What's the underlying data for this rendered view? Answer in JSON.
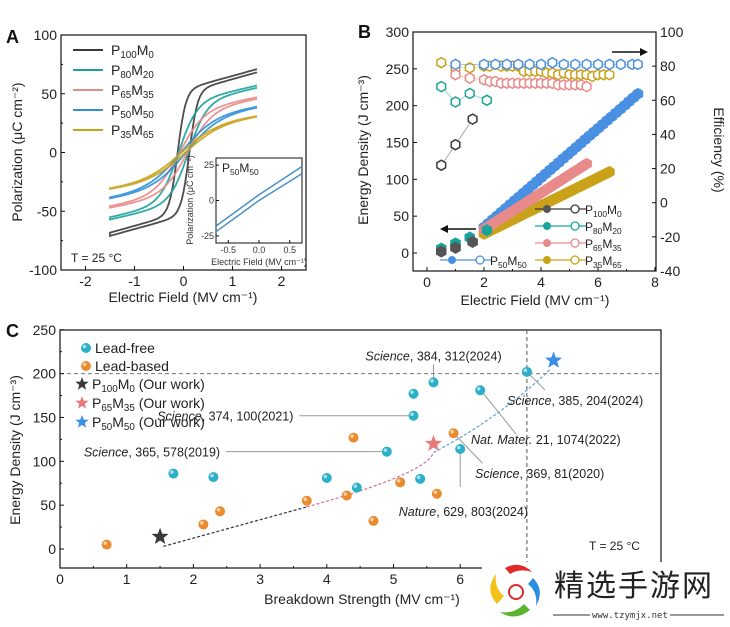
{
  "chart_data": [
    {
      "panel": "A",
      "type": "line",
      "title": "",
      "xlabel": "Electric Field (MV cm⁻¹)",
      "ylabel": "Polarization (μC cm⁻²)",
      "xlim": [
        -2.5,
        2.5
      ],
      "ylim": [
        -100,
        100
      ],
      "xticks": [
        -2,
        -1,
        0,
        1,
        2
      ],
      "xtick_labels": [
        "-2",
        "-1",
        "0",
        "1",
        "2"
      ],
      "yticks": [
        -100,
        -50,
        0,
        50,
        100
      ],
      "ytick_labels": [
        "-100",
        "-50",
        "0",
        "50",
        "100"
      ],
      "legend_position": "top-left",
      "annotation": "T = 25 °C",
      "series": [
        {
          "name": "P100M0",
          "label_main": "P",
          "sub1": "100",
          "label_mid": "M",
          "sub2": "0",
          "color": "#3a3a3a",
          "emax": 1.5,
          "pmax": 71,
          "pr": 44,
          "ec": 0.12,
          "sharp": 9
        },
        {
          "name": "P80M20",
          "label_main": "P",
          "sub1": "80",
          "label_mid": "M",
          "sub2": "20",
          "color": "#1aa39a",
          "emax": 1.5,
          "pmax": 57,
          "pr": 20,
          "ec": 0.1,
          "sharp": 4
        },
        {
          "name": "P65M35",
          "label_main": "P",
          "sub1": "65",
          "label_mid": "M",
          "sub2": "35",
          "color": "#e98a8a",
          "emax": 1.5,
          "pmax": 47,
          "pr": 12,
          "ec": 0.08,
          "sharp": 3
        },
        {
          "name": "P50M50",
          "label_main": "P",
          "sub1": "50",
          "label_mid": "M",
          "sub2": "50",
          "color": "#2f8fd8",
          "emax": 1.5,
          "pmax": 39,
          "pr": 4,
          "ec": 0.05,
          "sharp": 2.2
        },
        {
          "name": "P35M65",
          "label_main": "P",
          "sub1": "35",
          "label_mid": "M",
          "sub2": "65",
          "color": "#c9a21a",
          "emax": 1.5,
          "pmax": 31,
          "pr": 3,
          "ec": 0.04,
          "sharp": 2
        }
      ],
      "inset": {
        "title_main": "P",
        "title_sub1": "50",
        "title_mid": "M",
        "title_sub2": "50",
        "xlabel": "Electric Field (MV cm⁻¹)",
        "ylabel": "Polarization (μC cm⁻²)",
        "xlim": [
          -0.7,
          0.7
        ],
        "ylim": [
          -30,
          30
        ],
        "xtick_labels": [
          "-0.5",
          "0.0",
          "0.5"
        ],
        "xticks": [
          -0.5,
          0.0,
          0.5
        ],
        "ytick_labels": [
          "-25",
          "0",
          "25"
        ],
        "yticks": [
          -25,
          0,
          25
        ],
        "color": "#4a90c8",
        "upper_branch": [
          [
            -0.7,
            -18
          ],
          [
            0.0,
            4
          ],
          [
            0.7,
            24
          ]
        ],
        "lower_branch": [
          [
            -0.7,
            -22
          ],
          [
            0.0,
            0
          ],
          [
            0.7,
            19
          ]
        ]
      }
    },
    {
      "panel": "B",
      "type": "scatter",
      "xlabel": "Electric Field (MV cm⁻¹)",
      "ylabel_left": "Energy Density (J cm⁻³)",
      "ylabel_right": "Efficiency (%)",
      "xlim": [
        -0.5,
        8
      ],
      "ylim_left": [
        -25,
        300
      ],
      "ylim_right": [
        -40,
        100
      ],
      "xticks": [
        0,
        2,
        4,
        6,
        8
      ],
      "xtick_labels": [
        "0",
        "2",
        "4",
        "6",
        "8"
      ],
      "yticks_left": [
        0,
        50,
        100,
        150,
        200,
        250,
        300
      ],
      "ytick_labels_left": [
        "0",
        "50",
        "100",
        "150",
        "200",
        "250",
        "300"
      ],
      "yticks_right": [
        -40,
        -20,
        0,
        20,
        40,
        60,
        80,
        100
      ],
      "ytick_labels_right": [
        "-40",
        "-20",
        "0",
        "20",
        "40",
        "60",
        "80",
        "100"
      ],
      "legend_position": "bottom-right",
      "series": [
        {
          "name": "P100M0",
          "sub1": "100",
          "sub2": "0",
          "color": "#3a3a3a",
          "fill_color": "#555555",
          "energy": {
            "x": [
              0.5,
              1.0,
              1.6
            ],
            "y": [
              2,
              7,
              15
            ]
          },
          "efficiency": {
            "x": [
              0.5,
              1.0,
              1.6
            ],
            "y": [
              22,
              34,
              49
            ]
          }
        },
        {
          "name": "P80M20",
          "sub1": "80",
          "sub2": "20",
          "color": "#1aa39a",
          "fill_color": "#1aa39a",
          "energy": {
            "x": [
              0.5,
              1.0,
              1.5,
              2.1
            ],
            "y": [
              6,
              13,
              21,
              31
            ]
          },
          "efficiency": {
            "x": [
              0.5,
              1.0,
              1.5,
              2.1
            ],
            "y": [
              68,
              59,
              64,
              60
            ]
          }
        },
        {
          "name": "P65M35",
          "sub1": "65",
          "sub2": "35",
          "color": "#e98a8a",
          "fill_color": "#e98a8a",
          "energy": {
            "x_start": 2.0,
            "x_end": 5.6,
            "y_start": 32,
            "y_end": 121,
            "n": 25
          },
          "efficiency": {
            "x": [
              1.0,
              1.5,
              2.0,
              2.2,
              2.4,
              2.6,
              2.8,
              3.0,
              3.2,
              3.4,
              3.6,
              3.8,
              4.0,
              4.2,
              4.4,
              4.6,
              4.8,
              5.0,
              5.2,
              5.4,
              5.6
            ],
            "y": [
              75,
              73,
              72,
              71,
              71,
              70,
              70,
              70,
              70,
              70,
              70,
              70,
              70,
              70,
              70,
              69,
              69,
              69,
              69,
              69,
              68
            ]
          }
        },
        {
          "name": "P50M50",
          "sub1": "50",
          "sub2": "50",
          "color": "#4a90e2",
          "fill_color": "#4a90e2",
          "energy": {
            "x_start": 2.0,
            "x_end": 7.4,
            "y_start": 35,
            "y_end": 216,
            "n": 36
          },
          "efficiency": {
            "x": [
              1.0,
              2.0,
              2.4,
              2.8,
              3.2,
              3.6,
              4.0,
              4.4,
              4.8,
              5.2,
              5.6,
              6.0,
              6.4,
              6.8,
              7.2,
              7.4
            ],
            "y": [
              81,
              81,
              81,
              81,
              81,
              81,
              81,
              82,
              81,
              81,
              81,
              81,
              81,
              81,
              81,
              81
            ]
          }
        },
        {
          "name": "P35M65",
          "sub1": "35",
          "sub2": "65",
          "color": "#c9a21a",
          "fill_color": "#c9a21a",
          "energy": {
            "x_start": 2.0,
            "x_end": 6.4,
            "y_start": 26,
            "y_end": 110,
            "n": 40
          },
          "efficiency": {
            "x": [
              0.5,
              1.0,
              1.5,
              2.0,
              2.2,
              2.4,
              2.6,
              2.8,
              3.0,
              3.2,
              3.4,
              3.6,
              3.8,
              4.0,
              4.2,
              4.4,
              4.6,
              4.8,
              5.0,
              5.2,
              5.4,
              5.6,
              5.8,
              6.0,
              6.2,
              6.4
            ],
            "y": [
              82,
              79,
              79,
              80,
              80,
              81,
              80,
              80,
              80,
              80,
              77,
              77,
              77,
              77,
              76,
              76,
              75,
              76,
              75,
              75,
              75,
              75,
              74,
              75,
              75,
              75
            ]
          }
        }
      ],
      "legend_entries": [
        "P100M0",
        "P80M20",
        "P65M35",
        "P35M65",
        "P50M50"
      ]
    },
    {
      "panel": "C",
      "type": "scatter",
      "xlabel": "Breakdown Strength (MV cm⁻¹)",
      "ylabel": "Energy Density (J cm⁻³)",
      "xlim": [
        0,
        9
      ],
      "ylim": [
        -25,
        250
      ],
      "xticks": [
        0,
        1,
        2,
        3,
        4,
        5,
        6
      ],
      "xtick_labels": [
        "0",
        "1",
        "2",
        "3",
        "4",
        "5",
        "6"
      ],
      "yticks": [
        0,
        50,
        100,
        150,
        200,
        250
      ],
      "ytick_labels": [
        "0",
        "50",
        "100",
        "150",
        "200",
        "250"
      ],
      "reference_lines": {
        "horizontal_y": 200,
        "vertical_x": 7.0
      },
      "annotation": "T = 25 °C",
      "legend_position": "top-left",
      "lead_free": {
        "label": "Lead-free",
        "color": "#2bb0c8",
        "points": [
          [
            1.7,
            86
          ],
          [
            2.3,
            82
          ],
          [
            4.0,
            81
          ],
          [
            4.45,
            70
          ],
          [
            4.9,
            111
          ],
          [
            5.3,
            152
          ],
          [
            5.3,
            177
          ],
          [
            5.4,
            80
          ],
          [
            5.6,
            190
          ],
          [
            6.0,
            114
          ],
          [
            6.3,
            181
          ],
          [
            7.0,
            202
          ]
        ]
      },
      "lead_based": {
        "label": "Lead-based",
        "color": "#ea8c2e",
        "points": [
          [
            0.7,
            5
          ],
          [
            2.15,
            28
          ],
          [
            2.4,
            43
          ],
          [
            3.7,
            55
          ],
          [
            4.3,
            61
          ],
          [
            4.4,
            127
          ],
          [
            4.7,
            32
          ],
          [
            5.1,
            76
          ],
          [
            5.65,
            63
          ],
          [
            5.9,
            132
          ]
        ]
      },
      "our_work": [
        {
          "name": "P100M0",
          "sub1": "100",
          "sub2": "0",
          "suffix": " (Our work)",
          "color": "#3a3a3a",
          "x": 1.5,
          "y": 14
        },
        {
          "name": "P65M35",
          "sub1": "65",
          "sub2": "35",
          "suffix": " (Our work)",
          "color": "#e87a7a",
          "x": 5.6,
          "y": 120
        },
        {
          "name": "P50M50",
          "sub1": "50",
          "sub2": "50",
          "suffix": " (Our work)",
          "color": "#3a8ee6",
          "x": 7.4,
          "y": 215
        }
      ],
      "trend_line": {
        "from": [
          1.55,
          3
        ],
        "mid": [
          4.5,
          76
        ],
        "to": [
          7.35,
          205
        ]
      },
      "references": [
        {
          "journal": "Science",
          "detail": ", 384, 312(2024)",
          "point": [
            5.6,
            190
          ],
          "text_anchor": [
            5.0,
            218
          ]
        },
        {
          "journal": "Science",
          "detail": ", 374, 100(2021)",
          "point": [
            5.3,
            152
          ],
          "text_anchor": [
            3.5,
            152
          ]
        },
        {
          "journal": "Science",
          "detail": ", 365, 578(2019)",
          "point": [
            4.9,
            111
          ],
          "text_anchor": [
            2.4,
            111
          ]
        },
        {
          "journal": "Science",
          "detail": ", 385, 204(2024)",
          "point": [
            7.0,
            202
          ],
          "text_anchor": [
            7.9,
            168
          ]
        },
        {
          "journal": "Nat. Mater.",
          "detail": " 21, 1074(2022)",
          "point": [
            6.3,
            181
          ],
          "text_anchor": [
            7.6,
            126
          ]
        },
        {
          "journal": "Science",
          "detail": ", 369, 81(2020)",
          "point": [
            5.9,
            132
          ],
          "text_anchor": [
            7.2,
            88
          ]
        },
        {
          "journal": "Nature",
          "detail": ", 629, 803(2024)",
          "point": [
            6.0,
            114
          ],
          "text_anchor": [
            5.9,
            45
          ]
        }
      ]
    }
  ],
  "watermark": {
    "title": "精选手游网",
    "url": "www.tzymjx.net"
  },
  "panel_labels": [
    "A",
    "B",
    "C"
  ]
}
